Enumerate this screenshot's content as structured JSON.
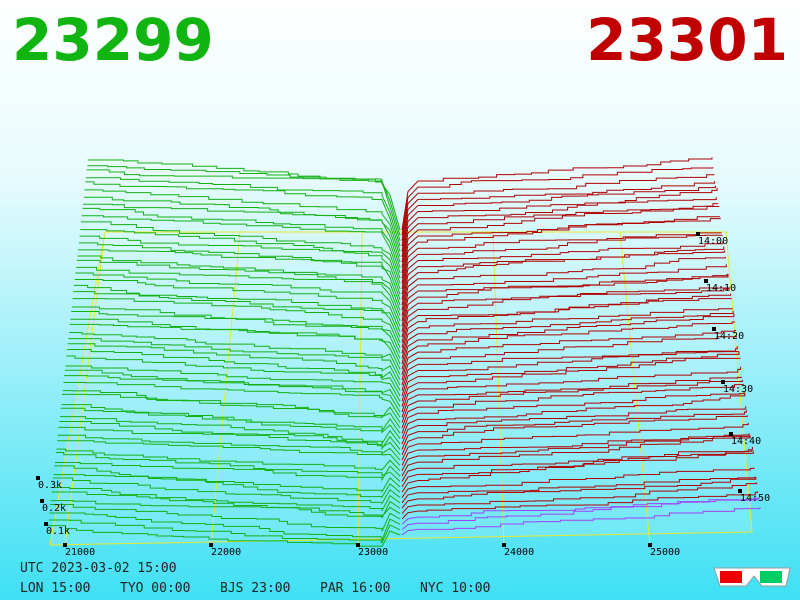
{
  "header": {
    "bid": "23299",
    "ask": "23301"
  },
  "price_axis": [
    "21000",
    "22000",
    "23000",
    "24000",
    "25000"
  ],
  "depth_axis": [
    "0.3k",
    "0.2k",
    "0.1k"
  ],
  "time_axis": [
    "14:00",
    "14:10",
    "14:20",
    "14:30",
    "14:40",
    "14:50"
  ],
  "footer": {
    "utc": "UTC 2023-03-02 15:00",
    "cities": [
      "LON 15:00",
      "TYO 00:00",
      "BJS 23:00",
      "PAR 16:00",
      "NYC 10:00"
    ]
  }
}
